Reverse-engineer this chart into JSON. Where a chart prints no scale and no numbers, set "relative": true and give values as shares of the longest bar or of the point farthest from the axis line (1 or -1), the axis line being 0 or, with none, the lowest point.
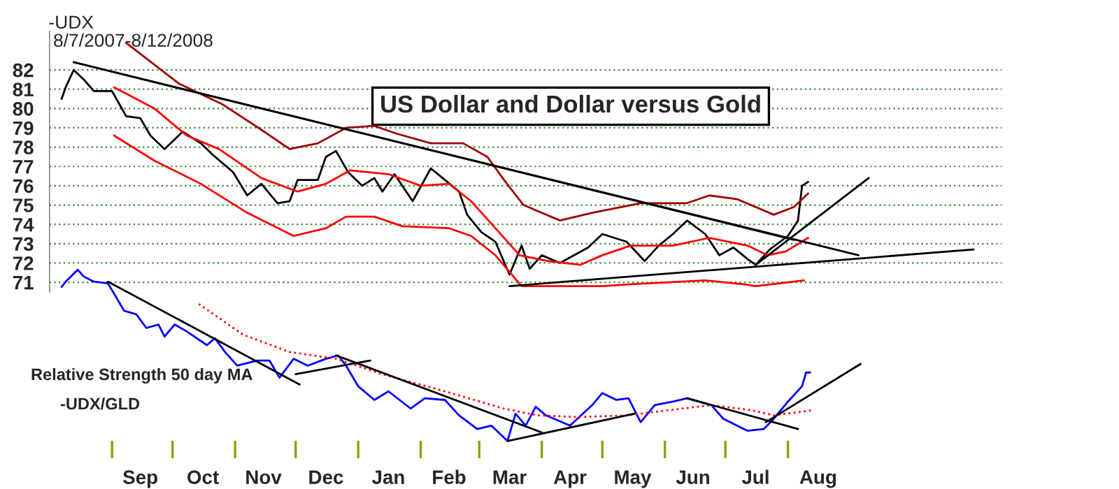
{
  "chart_data": [
    {
      "type": "line",
      "title": "US Dollar and Dollar versus Gold",
      "subtitle": "8/7/2007-8/12/2008",
      "ylabel": "-UDX",
      "xlim": [
        "2007-08-01",
        "2008-11-15"
      ],
      "ylim": [
        70.5,
        84
      ],
      "yticks": [
        71,
        72,
        73,
        74,
        75,
        76,
        77,
        78,
        79,
        80,
        81,
        82
      ],
      "grid": "y",
      "tick_labels": "y",
      "series": [
        {
          "color": "#000000",
          "x": [
            "2007-08-07",
            "2007-08-09",
            "2007-08-13",
            "2007-08-18",
            "2007-08-23",
            "2007-09-01",
            "2007-09-08",
            "2007-09-15",
            "2007-09-20",
            "2007-09-27",
            "2007-10-06",
            "2007-10-15",
            "2007-10-21",
            "2007-10-31",
            "2007-11-07",
            "2007-11-14",
            "2007-11-22",
            "2007-11-28",
            "2007-12-02",
            "2007-12-12",
            "2007-12-16",
            "2007-12-21",
            "2007-12-27",
            "2008-01-03",
            "2008-01-09",
            "2008-01-13",
            "2008-01-19",
            "2008-01-28",
            "2008-02-06",
            "2008-02-13",
            "2008-02-20",
            "2008-02-24",
            "2008-03-02",
            "2008-03-09",
            "2008-03-16",
            "2008-03-22",
            "2008-03-26",
            "2008-04-01",
            "2008-04-10",
            "2008-04-24",
            "2008-05-01",
            "2008-05-13",
            "2008-05-22",
            "2008-05-29",
            "2008-06-05",
            "2008-06-12",
            "2008-06-21",
            "2008-06-28",
            "2008-07-05",
            "2008-07-12",
            "2008-07-16",
            "2008-07-23",
            "2008-08-01",
            "2008-08-06",
            "2008-08-08",
            "2008-08-11"
          ],
          "values": [
            80.5,
            81.1,
            82.0,
            81.5,
            80.9,
            80.9,
            79.6,
            79.5,
            78.6,
            77.9,
            78.8,
            78.2,
            77.6,
            76.7,
            75.5,
            76.1,
            75.1,
            75.2,
            76.3,
            76.3,
            77.5,
            77.8,
            76.7,
            76.0,
            76.4,
            75.7,
            76.6,
            75.2,
            76.9,
            76.3,
            75.7,
            74.5,
            73.6,
            73.1,
            71.4,
            72.9,
            71.7,
            72.4,
            72.0,
            72.8,
            73.5,
            73.1,
            72.1,
            72.9,
            73.5,
            74.2,
            73.5,
            72.4,
            72.8,
            72.2,
            71.9,
            72.7,
            73.4,
            74.2,
            76.0,
            76.2
          ]
        },
        {
          "color": "#ff0000",
          "x": [
            "2007-09-02",
            "2007-09-22",
            "2007-10-08",
            "2007-10-24",
            "2007-11-14",
            "2007-12-02",
            "2007-12-16",
            "2007-12-28",
            "2008-01-16",
            "2008-02-01",
            "2008-02-15",
            "2008-02-26",
            "2008-03-09",
            "2008-03-21",
            "2008-04-04",
            "2008-04-20",
            "2008-05-01",
            "2008-05-15",
            "2008-06-05",
            "2008-06-23",
            "2008-07-12",
            "2008-07-22",
            "2008-07-31",
            "2008-08-11"
          ],
          "values": [
            81.1,
            80.0,
            78.6,
            77.9,
            76.4,
            75.7,
            76.1,
            76.8,
            76.6,
            76.0,
            76.1,
            75.2,
            73.8,
            72.4,
            72.1,
            71.9,
            72.4,
            72.9,
            72.9,
            73.3,
            72.9,
            72.4,
            72.6,
            73.3
          ]
        },
        {
          "color": "#ff0000",
          "x": [
            "2007-09-02",
            "2007-09-22",
            "2007-10-15",
            "2007-11-07",
            "2007-11-30",
            "2007-12-16",
            "2007-12-26",
            "2008-01-09",
            "2008-01-23",
            "2008-02-15",
            "2008-02-26",
            "2008-03-09",
            "2008-03-22",
            "2008-05-01",
            "2008-05-15",
            "2008-06-21",
            "2008-07-10",
            "2008-07-16",
            "2008-08-09"
          ],
          "values": [
            78.6,
            77.3,
            76.1,
            74.6,
            73.4,
            73.8,
            74.4,
            74.4,
            73.9,
            73.8,
            73.4,
            72.4,
            70.8,
            70.8,
            70.9,
            71.1,
            70.9,
            70.8,
            71.1
          ]
        },
        {
          "color": "#a00000",
          "x": [
            "2007-09-08",
            "2007-10-04",
            "2007-10-26",
            "2007-11-14",
            "2007-11-28",
            "2007-12-12",
            "2007-12-26",
            "2008-01-09",
            "2008-01-20",
            "2008-02-06",
            "2008-02-22",
            "2008-03-05",
            "2008-03-14",
            "2008-03-23",
            "2008-04-10",
            "2008-04-26",
            "2008-05-20",
            "2008-06-12",
            "2008-06-23",
            "2008-07-07",
            "2008-07-25",
            "2008-08-04",
            "2008-08-11"
          ],
          "values": [
            83.4,
            81.3,
            80.2,
            78.9,
            77.9,
            78.2,
            79.0,
            79.1,
            78.7,
            78.2,
            78.2,
            77.5,
            76.2,
            75.0,
            74.2,
            74.6,
            75.1,
            75.1,
            75.5,
            75.3,
            74.5,
            74.9,
            75.6
          ]
        },
        {
          "color": "#000000",
          "x": [
            "2007-08-13",
            "2008-09-05"
          ],
          "values": [
            82.4,
            72.4
          ]
        },
        {
          "color": "#000000",
          "x": [
            "2007-08-13",
            "2008-08-04"
          ],
          "values": [
            82.4,
            73.2
          ]
        },
        {
          "color": "#000000",
          "x": [
            "2008-03-16",
            "2008-11-01"
          ],
          "values": [
            70.8,
            72.7
          ]
        },
        {
          "color": "#000000",
          "x": [
            "2008-07-16",
            "2008-09-10"
          ],
          "values": [
            71.9,
            76.4
          ]
        }
      ]
    },
    {
      "type": "line",
      "relative": true,
      "tick_labels": "x",
      "xlim": [
        "2007-08-01",
        "2008-11-15"
      ],
      "annotations": [
        "Relative Strength 50 day MA",
        "-UDX/GLD"
      ],
      "xticks": [
        {
          "value": "2007-09-01",
          "label": null
        },
        {
          "value": "2007-10-01",
          "label": null
        },
        {
          "value": "2007-11-01",
          "label": null
        },
        {
          "value": "2007-12-01",
          "label": null
        },
        {
          "value": "2008-01-01",
          "label": null
        },
        {
          "value": "2008-02-01",
          "label": null
        },
        {
          "value": "2008-03-01",
          "label": null
        },
        {
          "value": "2008-04-01",
          "label": null
        },
        {
          "value": "2008-05-01",
          "label": null
        },
        {
          "value": "2008-06-01",
          "label": null
        },
        {
          "value": "2008-07-01",
          "label": null
        },
        {
          "value": "2008-08-01",
          "label": null
        },
        {
          "value": "2007-09-15",
          "label": "Sep"
        },
        {
          "value": "2007-10-16",
          "label": "Oct"
        },
        {
          "value": "2007-11-15",
          "label": "Nov"
        },
        {
          "value": "2007-12-16",
          "label": "Dec"
        },
        {
          "value": "2008-01-16",
          "label": "Jan"
        },
        {
          "value": "2008-02-15",
          "label": "Feb"
        },
        {
          "value": "2008-03-16",
          "label": "Mar"
        },
        {
          "value": "2008-04-15",
          "label": "Apr"
        },
        {
          "value": "2008-05-16",
          "label": "May"
        },
        {
          "value": "2008-06-15",
          "label": "Jun"
        },
        {
          "value": "2008-07-16",
          "label": "Jul"
        },
        {
          "value": "2008-08-16",
          "label": "Aug"
        }
      ],
      "series": [
        {
          "color": "#0000ff",
          "x": [
            "2007-08-07",
            "2007-08-09",
            "2007-08-15",
            "2007-08-18",
            "2007-08-23",
            "2007-08-30",
            "2007-09-02",
            "2007-09-07",
            "2007-09-13",
            "2007-09-18",
            "2007-09-24",
            "2007-09-27",
            "2007-10-02",
            "2007-10-08",
            "2007-10-18",
            "2007-10-22",
            "2007-10-27",
            "2007-11-02",
            "2007-11-12",
            "2007-11-18",
            "2007-11-23",
            "2007-11-30",
            "2007-12-07",
            "2007-12-16",
            "2007-12-22",
            "2007-12-26",
            "2008-01-01",
            "2008-01-09",
            "2008-01-16",
            "2008-01-27",
            "2008-02-03",
            "2008-02-13",
            "2008-02-20",
            "2008-02-29",
            "2008-03-07",
            "2008-03-15",
            "2008-03-19",
            "2008-03-24",
            "2008-03-29",
            "2008-04-03",
            "2008-04-15",
            "2008-04-26",
            "2008-05-01",
            "2008-05-08",
            "2008-05-14",
            "2008-05-20",
            "2008-05-27",
            "2008-06-05",
            "2008-06-12",
            "2008-06-24",
            "2008-06-30",
            "2008-07-12",
            "2008-07-20",
            "2008-07-25",
            "2008-08-01",
            "2008-08-08",
            "2008-08-10",
            "2008-08-12"
          ],
          "values": [
            0.9,
            0.93,
            1.0,
            0.96,
            0.93,
            0.92,
            0.86,
            0.76,
            0.74,
            0.66,
            0.68,
            0.61,
            0.68,
            0.64,
            0.56,
            0.6,
            0.52,
            0.44,
            0.47,
            0.47,
            0.37,
            0.48,
            0.44,
            0.48,
            0.5,
            0.44,
            0.32,
            0.24,
            0.29,
            0.19,
            0.25,
            0.24,
            0.15,
            0.07,
            0.09,
            0.0,
            0.16,
            0.09,
            0.2,
            0.15,
            0.09,
            0.21,
            0.28,
            0.24,
            0.25,
            0.11,
            0.21,
            0.23,
            0.25,
            0.21,
            0.13,
            0.06,
            0.07,
            0.13,
            0.23,
            0.32,
            0.4,
            0.4
          ]
        },
        {
          "color": "#ff0000",
          "line_style": "dotted",
          "x": [
            "2007-10-14",
            "2007-11-05",
            "2007-11-28",
            "2007-12-21",
            "2008-01-13",
            "2008-02-13",
            "2008-03-13",
            "2008-03-30",
            "2008-04-19",
            "2008-05-13",
            "2008-06-03",
            "2008-06-24",
            "2008-07-14",
            "2008-07-25",
            "2008-08-13"
          ],
          "values": [
            0.8,
            0.62,
            0.52,
            0.48,
            0.39,
            0.29,
            0.19,
            0.15,
            0.14,
            0.15,
            0.18,
            0.21,
            0.18,
            0.15,
            0.18
          ]
        },
        {
          "color": "#000000",
          "x": [
            "2007-08-30",
            "2007-12-03"
          ],
          "values": [
            0.93,
            0.33
          ]
        },
        {
          "color": "#000000",
          "x": [
            "2007-12-01",
            "2008-01-07"
          ],
          "values": [
            0.39,
            0.47
          ]
        },
        {
          "color": "#000000",
          "x": [
            "2007-12-21",
            "2008-04-01"
          ],
          "values": [
            0.5,
            0.05
          ]
        },
        {
          "color": "#000000",
          "x": [
            "2008-03-15",
            "2008-05-17"
          ],
          "values": [
            0.0,
            0.16
          ]
        },
        {
          "color": "#000000",
          "x": [
            "2008-06-12",
            "2008-08-06"
          ],
          "values": [
            0.25,
            0.07
          ]
        },
        {
          "color": "#000000",
          "x": [
            "2008-07-21",
            "2008-09-06"
          ],
          "values": [
            0.11,
            0.45
          ]
        }
      ]
    }
  ]
}
